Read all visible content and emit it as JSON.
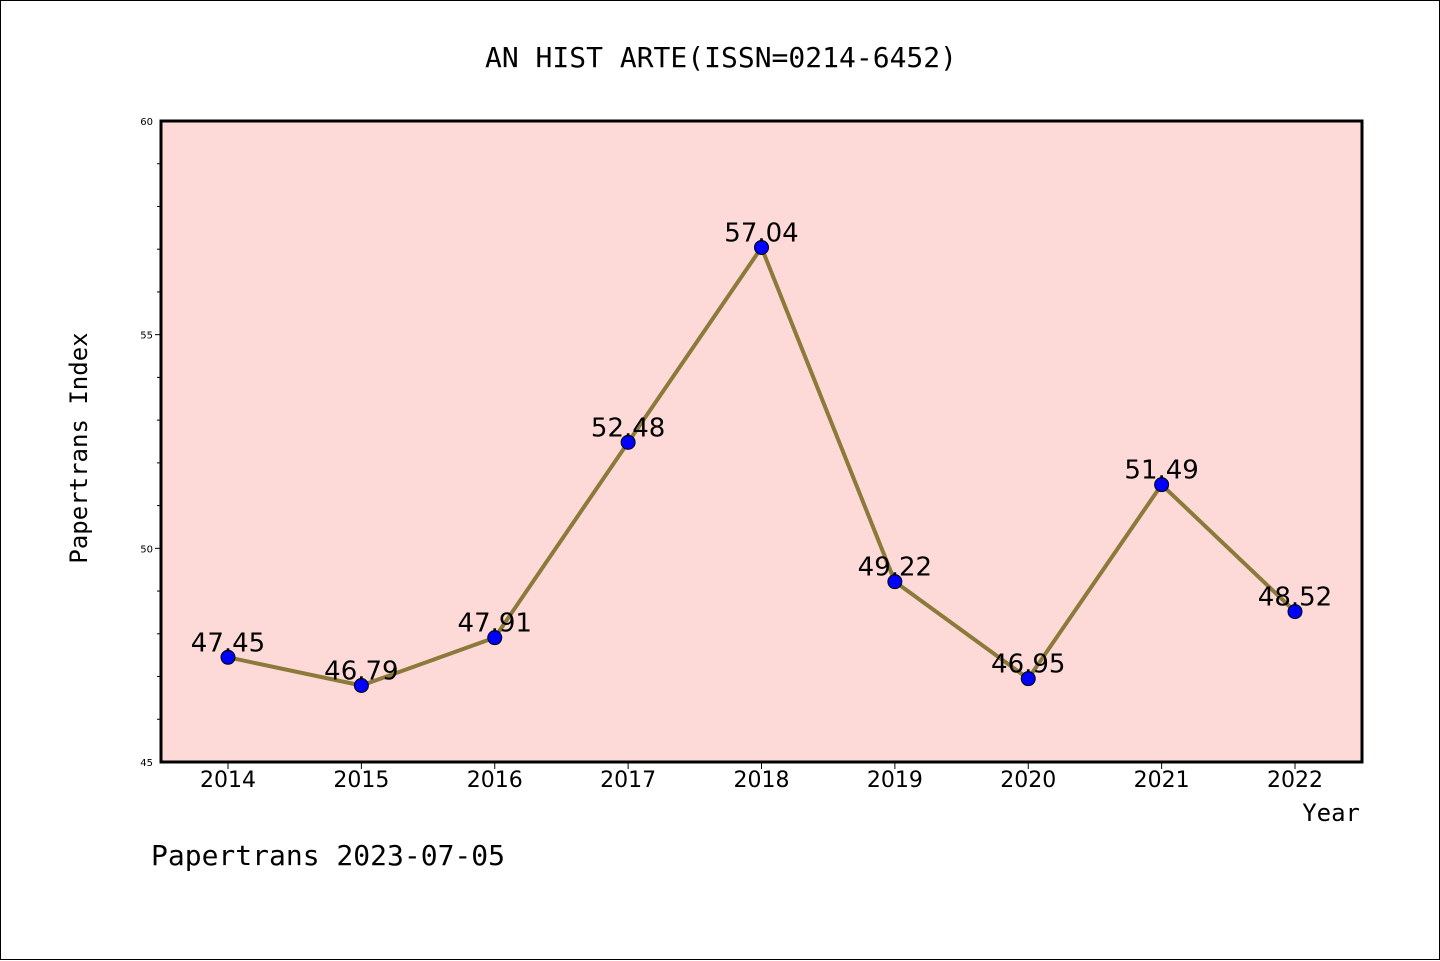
{
  "chart_data": {
    "type": "line",
    "title": "AN HIST ARTE(ISSN=0214-6452)",
    "xlabel": "Year",
    "ylabel": "Papertrans Index",
    "categories": [
      "2014",
      "2015",
      "2016",
      "2017",
      "2018",
      "2019",
      "2020",
      "2021",
      "2022"
    ],
    "series": [
      {
        "values": [
          47.45,
          46.79,
          47.91,
          52.48,
          57.04,
          49.22,
          46.95,
          51.49,
          48.52
        ],
        "labels": [
          "47.45",
          "46.79",
          "47.91",
          "52.48",
          "57.04",
          "49.22",
          "46.95",
          "51.49",
          "48.52"
        ]
      }
    ],
    "ylim": [
      45,
      60
    ],
    "yticks": [
      45,
      50,
      55,
      60
    ],
    "grid": false,
    "colors": {
      "plot_background": "#fddad7",
      "line": "#8b7a3a",
      "marker": "#0000ff"
    }
  },
  "footer": "Papertrans 2023-07-05"
}
